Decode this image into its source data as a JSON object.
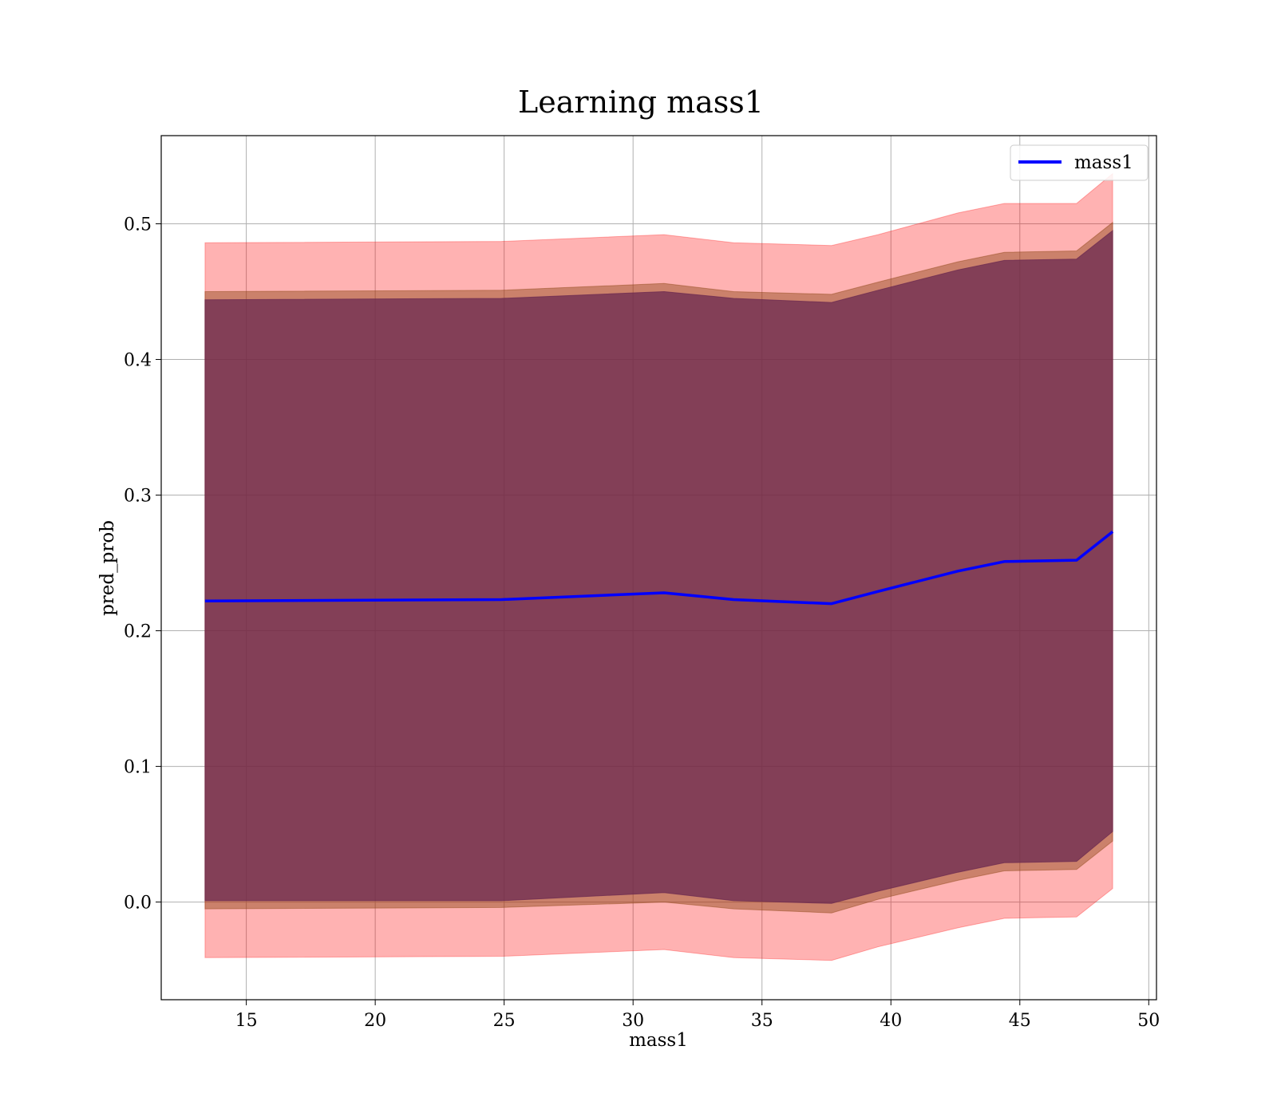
{
  "chart_data": {
    "type": "area",
    "title": "Learning mass1",
    "xlabel": "mass1",
    "ylabel": "pred_prob",
    "xlim": [
      11.7,
      50.3
    ],
    "ylim": [
      -0.072,
      0.565
    ],
    "xticks": [
      15,
      20,
      25,
      30,
      35,
      40,
      45,
      50
    ],
    "yticks": [
      0.0,
      0.1,
      0.2,
      0.3,
      0.4,
      0.5
    ],
    "grid": true,
    "legend": {
      "position": "top-right",
      "entries": [
        "mass1"
      ]
    },
    "colors": {
      "line": "#0000ff",
      "outer_band": "#ff0000",
      "middle_band": "#8b4513",
      "inner_band": "#6b2a50"
    },
    "x": [
      13.4,
      24.9,
      31.2,
      33.9,
      37.7,
      39.5,
      42.6,
      44.4,
      47.2,
      48.6
    ],
    "series": [
      {
        "name": "mass1",
        "values": [
          0.222,
          0.223,
          0.228,
          0.223,
          0.22,
          0.229,
          0.244,
          0.251,
          0.252,
          0.273
        ]
      }
    ],
    "bands": [
      {
        "lower": [
          -0.041,
          -0.04,
          -0.035,
          -0.041,
          -0.043,
          -0.033,
          -0.019,
          -0.012,
          -0.011,
          0.01
        ],
        "upper": [
          0.486,
          0.487,
          0.492,
          0.486,
          0.484,
          0.492,
          0.508,
          0.515,
          0.515,
          0.537
        ]
      },
      {
        "lower": [
          -0.005,
          -0.004,
          0.0,
          -0.005,
          -0.008,
          0.002,
          0.016,
          0.023,
          0.024,
          0.045
        ],
        "upper": [
          0.45,
          0.451,
          0.456,
          0.45,
          0.448,
          0.457,
          0.472,
          0.479,
          0.48,
          0.501
        ]
      },
      {
        "lower": [
          0.001,
          0.001,
          0.007,
          0.001,
          -0.001,
          0.008,
          0.022,
          0.029,
          0.03,
          0.052
        ],
        "upper": [
          0.444,
          0.445,
          0.45,
          0.445,
          0.442,
          0.451,
          0.466,
          0.473,
          0.474,
          0.495
        ]
      }
    ]
  }
}
